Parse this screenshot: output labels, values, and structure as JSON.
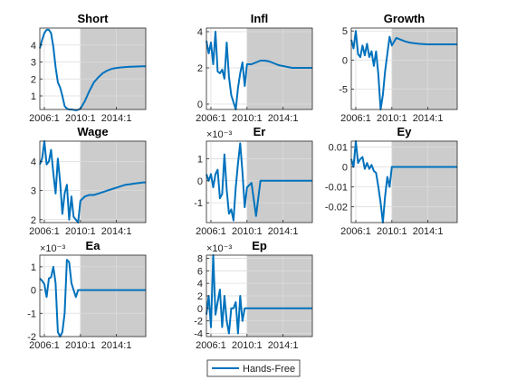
{
  "legend": {
    "label": "Hands-Free",
    "location": "bottom-center"
  },
  "colors": {
    "line": "#0072BD",
    "shade": "#cccccc",
    "grid": "#dcdcdc"
  },
  "chart_data": [
    {
      "type": "line",
      "title": "Short",
      "xlim": [
        2005.5,
        2017.25
      ],
      "shade_start": 2010.0,
      "xticks": [
        2006,
        2010,
        2014
      ],
      "xtick_labels": [
        "2006:1",
        "2010:1",
        "2014:1"
      ],
      "ylim": [
        0.2,
        5.0
      ],
      "yticks": [
        1,
        2,
        3,
        4
      ],
      "ytick_labels": [
        "1",
        "2",
        "3",
        "4"
      ],
      "y_exponent": "",
      "series": [
        {
          "x": [
            2005.5,
            2005.75,
            2006,
            2006.25,
            2006.5,
            2006.75,
            2007,
            2007.25,
            2007.5,
            2007.75,
            2008,
            2008.25,
            2008.5,
            2008.75,
            2009,
            2009.25,
            2009.5,
            2009.75,
            2010,
            2010.5,
            2011,
            2011.5,
            2012,
            2012.5,
            2013,
            2013.5,
            2014,
            2014.5,
            2015,
            2015.5,
            2016,
            2016.5,
            2017,
            2017.25
          ],
          "y": [
            3.8,
            4.3,
            4.7,
            4.9,
            4.9,
            4.7,
            3.9,
            2.7,
            1.8,
            1.5,
            1.0,
            0.4,
            0.25,
            0.2,
            0.2,
            0.18,
            0.15,
            0.18,
            0.25,
            0.7,
            1.3,
            1.8,
            2.1,
            2.35,
            2.5,
            2.6,
            2.65,
            2.68,
            2.7,
            2.72,
            2.73,
            2.74,
            2.75,
            2.75
          ]
        }
      ]
    },
    {
      "type": "line",
      "title": "Infl",
      "xlim": [
        2005.5,
        2017.25
      ],
      "shade_start": 2010.0,
      "xticks": [
        2006,
        2010,
        2014
      ],
      "xtick_labels": [
        "2006:1",
        "2010:1",
        "2014:1"
      ],
      "ylim": [
        -0.3,
        4.2
      ],
      "yticks": [
        0,
        2,
        4
      ],
      "ytick_labels": [
        "0",
        "2",
        "4"
      ],
      "y_exponent": "",
      "series": [
        {
          "x": [
            2005.5,
            2005.75,
            2006,
            2006.25,
            2006.5,
            2006.75,
            2007,
            2007.25,
            2007.5,
            2007.75,
            2008,
            2008.25,
            2008.5,
            2008.75,
            2009,
            2009.25,
            2009.5,
            2009.75,
            2010,
            2010.5,
            2011,
            2011.5,
            2012,
            2012.5,
            2013,
            2013.5,
            2014,
            2014.5,
            2015,
            2015.5,
            2016,
            2016.5,
            2017,
            2017.25
          ],
          "y": [
            3.5,
            2.8,
            3.4,
            2.2,
            4.0,
            1.8,
            1.7,
            1.9,
            1.4,
            3.4,
            1.5,
            0.5,
            0.1,
            -0.3,
            0.9,
            1.7,
            2.3,
            1.0,
            2.2,
            2.2,
            2.3,
            2.4,
            2.4,
            2.35,
            2.25,
            2.15,
            2.1,
            2.05,
            2.0,
            2.0,
            2.0,
            2.0,
            2.0,
            2.0
          ]
        }
      ]
    },
    {
      "type": "line",
      "title": "Growth",
      "xlim": [
        2005.5,
        2017.25
      ],
      "shade_start": 2010.0,
      "xticks": [
        2006,
        2010,
        2014
      ],
      "xtick_labels": [
        "2006:1",
        "2010:1",
        "2014:1"
      ],
      "ylim": [
        -8.5,
        5.5
      ],
      "yticks": [
        -5,
        0,
        5
      ],
      "ytick_labels": [
        "-5",
        "0",
        "5"
      ],
      "y_exponent": "",
      "series": [
        {
          "x": [
            2005.5,
            2005.75,
            2006,
            2006.25,
            2006.5,
            2006.75,
            2007,
            2007.25,
            2007.5,
            2007.75,
            2008,
            2008.25,
            2008.5,
            2008.75,
            2009,
            2009.25,
            2009.5,
            2009.75,
            2010,
            2010.5,
            2011,
            2011.5,
            2012,
            2012.5,
            2013,
            2013.5,
            2014,
            2014.5,
            2015,
            2015.5,
            2016,
            2016.5,
            2017,
            2017.25
          ],
          "y": [
            3.5,
            2.0,
            5.0,
            1.0,
            0.5,
            2.5,
            0.8,
            2.8,
            0.5,
            1.5,
            -1.0,
            1.5,
            -2.5,
            -8.5,
            -6.0,
            -2.0,
            1.0,
            4.0,
            2.5,
            3.8,
            3.5,
            3.2,
            3.0,
            2.9,
            2.8,
            2.75,
            2.7,
            2.7,
            2.7,
            2.7,
            2.7,
            2.7,
            2.7,
            2.7
          ]
        }
      ]
    },
    {
      "type": "line",
      "title": "Wage",
      "xlim": [
        2005.5,
        2017.25
      ],
      "shade_start": 2010.0,
      "xticks": [
        2006,
        2010,
        2014
      ],
      "xtick_labels": [
        "2006:1",
        "2010:1",
        "2014:1"
      ],
      "ylim": [
        1.9,
        4.7
      ],
      "yticks": [
        2,
        3,
        4
      ],
      "ytick_labels": [
        "2",
        "3",
        "4"
      ],
      "y_exponent": "",
      "series": [
        {
          "x": [
            2005.5,
            2005.75,
            2006,
            2006.25,
            2006.5,
            2006.75,
            2007,
            2007.25,
            2007.5,
            2007.75,
            2008,
            2008.25,
            2008.5,
            2008.75,
            2009,
            2009.25,
            2009.5,
            2009.75,
            2010,
            2010.5,
            2011,
            2011.5,
            2012,
            2012.5,
            2013,
            2013.5,
            2014,
            2014.5,
            2015,
            2015.5,
            2016,
            2016.5,
            2017,
            2017.25
          ],
          "y": [
            3.9,
            4.1,
            4.7,
            3.9,
            4.0,
            4.4,
            3.6,
            2.9,
            4.1,
            3.3,
            2.2,
            2.9,
            3.2,
            2.0,
            2.8,
            2.1,
            2.0,
            1.9,
            2.65,
            2.8,
            2.85,
            2.85,
            2.9,
            2.95,
            3.0,
            3.05,
            3.1,
            3.15,
            3.2,
            3.22,
            3.24,
            3.26,
            3.28,
            3.28
          ]
        }
      ]
    },
    {
      "type": "line",
      "title": "Er",
      "xlim": [
        2005.5,
        2017.25
      ],
      "shade_start": 2010.0,
      "xticks": [
        2006,
        2010,
        2014
      ],
      "xtick_labels": [
        "2006:1",
        "2010:1",
        "2014:1"
      ],
      "ylim": [
        -1.9,
        1.8
      ],
      "yticks": [
        -1,
        0,
        1
      ],
      "ytick_labels": [
        "-1",
        "0",
        "1"
      ],
      "y_exponent": "×10⁻³",
      "series": [
        {
          "x": [
            2005.5,
            2005.75,
            2006,
            2006.25,
            2006.5,
            2006.75,
            2007,
            2007.25,
            2007.5,
            2007.75,
            2008,
            2008.25,
            2008.5,
            2008.75,
            2009,
            2009.25,
            2009.5,
            2009.75,
            2010,
            2010.5,
            2011,
            2011.5,
            2012,
            2012.5,
            2013,
            2013.5,
            2014,
            2014.5,
            2015,
            2015.5,
            2016,
            2016.5,
            2017,
            2017.25
          ],
          "y": [
            0.3,
            0.0,
            0.3,
            -0.3,
            0.3,
            0.5,
            -0.8,
            -0.6,
            1.2,
            -0.4,
            -1.5,
            -1.3,
            -1.8,
            -0.3,
            0.8,
            1.7,
            0.4,
            -1.2,
            -0.3,
            -0.1,
            -1.6,
            0.0,
            0.0,
            0.0,
            0.0,
            0.0,
            0.0,
            0.0,
            0.0,
            0.0,
            0.0,
            0.0,
            0.0,
            0.0
          ]
        }
      ]
    },
    {
      "type": "line",
      "title": "Ey",
      "xlim": [
        2005.5,
        2017.25
      ],
      "shade_start": 2010.0,
      "xticks": [
        2006,
        2010,
        2014
      ],
      "xtick_labels": [
        "2006:1",
        "2010:1",
        "2014:1"
      ],
      "ylim": [
        -0.028,
        0.013
      ],
      "yticks": [
        -0.02,
        -0.01,
        0,
        0.01
      ],
      "ytick_labels": [
        "-0.02",
        "-0.01",
        "0",
        "0.01"
      ],
      "y_exponent": "",
      "series": [
        {
          "x": [
            2005.5,
            2005.75,
            2006,
            2006.25,
            2006.5,
            2006.75,
            2007,
            2007.25,
            2007.5,
            2007.75,
            2008,
            2008.25,
            2008.5,
            2008.75,
            2009,
            2009.25,
            2009.5,
            2009.75,
            2010,
            2010.5,
            2011,
            2011.5,
            2012,
            2012.5,
            2013,
            2013.5,
            2014,
            2014.5,
            2015,
            2015.5,
            2016,
            2016.5,
            2017,
            2017.25
          ],
          "y": [
            0.004,
            0.0,
            0.013,
            0.002,
            0.004,
            0.005,
            -0.001,
            0.002,
            -0.001,
            0.001,
            -0.002,
            -0.003,
            -0.01,
            -0.018,
            -0.028,
            -0.015,
            -0.005,
            -0.01,
            0.0,
            0.0,
            0.0,
            0.0,
            0.0,
            0.0,
            0.0,
            0.0,
            0.0,
            0.0,
            0.0,
            0.0,
            0.0,
            0.0,
            0.0,
            0.0
          ]
        }
      ]
    },
    {
      "type": "line",
      "title": "Ea",
      "xlim": [
        2005.5,
        2017.25
      ],
      "shade_start": 2010.0,
      "xticks": [
        2006,
        2010,
        2014
      ],
      "xtick_labels": [
        "2006:1",
        "2010:1",
        "2014:1"
      ],
      "ylim": [
        -2.0,
        1.5
      ],
      "yticks": [
        -2,
        -1,
        0,
        1
      ],
      "ytick_labels": [
        "-2",
        "-1",
        "0",
        "1"
      ],
      "y_exponent": "×10⁻³",
      "series": [
        {
          "x": [
            2005.5,
            2005.75,
            2006,
            2006.25,
            2006.5,
            2006.75,
            2007,
            2007.25,
            2007.5,
            2007.75,
            2008,
            2008.25,
            2008.5,
            2008.75,
            2009,
            2009.25,
            2009.5,
            2009.75,
            2010,
            2010.5,
            2011,
            2011.5,
            2012,
            2012.5,
            2013,
            2013.5,
            2014,
            2014.5,
            2015,
            2015.5,
            2016,
            2016.5,
            2017,
            2017.25
          ],
          "y": [
            0.5,
            0.4,
            0.25,
            -0.3,
            0.5,
            0.55,
            1.0,
            0.3,
            -1.8,
            -2.0,
            -1.8,
            -1.0,
            1.3,
            1.2,
            0.3,
            0.0,
            -0.3,
            0.0,
            0.0,
            0.0,
            0.0,
            0.0,
            0.0,
            0.0,
            0.0,
            0.0,
            0.0,
            0.0,
            0.0,
            0.0,
            0.0,
            0.0,
            0.0,
            0.0
          ]
        }
      ]
    },
    {
      "type": "line",
      "title": "Ep",
      "xlim": [
        2005.5,
        2017.25
      ],
      "shade_start": 2010.0,
      "xticks": [
        2006,
        2010,
        2014
      ],
      "xtick_labels": [
        "2006:1",
        "2010:1",
        "2014:1"
      ],
      "ylim": [
        -4.5,
        8.5
      ],
      "yticks": [
        -4,
        -2,
        0,
        2,
        4,
        6,
        8
      ],
      "ytick_labels": [
        "-4",
        "-2",
        "0",
        "2",
        "4",
        "6",
        "8"
      ],
      "y_exponent": "×10⁻³",
      "series": [
        {
          "x": [
            2005.5,
            2005.75,
            2006,
            2006.25,
            2006.5,
            2006.75,
            2007,
            2007.25,
            2007.5,
            2007.75,
            2008,
            2008.25,
            2008.5,
            2008.75,
            2009,
            2009.25,
            2009.5,
            2009.75,
            2010,
            2010.5,
            2011,
            2011.5,
            2012,
            2012.5,
            2013,
            2013.5,
            2014,
            2014.5,
            2015,
            2015.5,
            2016,
            2016.5,
            2017,
            2017.25
          ],
          "y": [
            -1.0,
            2.0,
            -3.0,
            8.5,
            -1.0,
            1.0,
            3.0,
            -3.0,
            2.0,
            -2.0,
            -4.0,
            0.0,
            0.0,
            1.0,
            -4.0,
            2.0,
            -2.0,
            0.0,
            0.0,
            0.0,
            0.0,
            0.0,
            0.0,
            0.0,
            0.0,
            0.0,
            0.0,
            0.0,
            0.0,
            0.0,
            0.0,
            0.0,
            0.0,
            0.0
          ]
        }
      ]
    }
  ]
}
